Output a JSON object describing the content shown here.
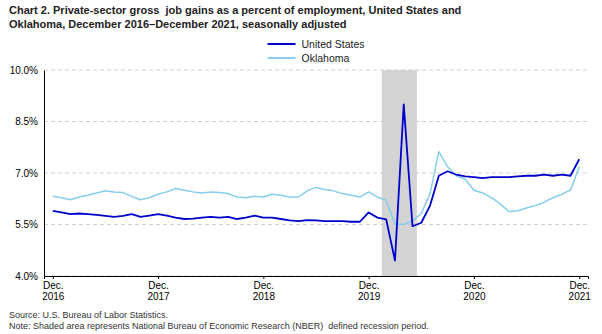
{
  "chart_data": {
    "type": "line",
    "title": "Chart 2. Private-sector gross  job gains as a percent of employment, United States and\nOklahoma, December 2016–December 2021, seasonally adjusted",
    "annotations": [
      "Source: U.S. Bureau of Labor Statistics.\nNote: Shaded area represents National Bureau of Economic Research (NBER)  defined recession period."
    ],
    "categories": [
      "Dec.\n2016",
      null,
      null,
      null,
      null,
      null,
      null,
      null,
      null,
      null,
      null,
      null,
      "Dec.\n2017",
      null,
      null,
      null,
      null,
      null,
      null,
      null,
      null,
      null,
      null,
      null,
      "Dec.\n2018",
      null,
      null,
      null,
      null,
      null,
      null,
      null,
      null,
      null,
      null,
      null,
      "Dec.\n2019",
      null,
      null,
      null,
      null,
      null,
      null,
      null,
      null,
      null,
      null,
      null,
      "Dec.\n2020",
      null,
      null,
      null,
      null,
      null,
      null,
      null,
      null,
      null,
      null,
      null,
      "Dec.\n2021"
    ],
    "series": [
      {
        "name": "United States",
        "color": "#0000CC",
        "values": [
          5.9,
          5.85,
          5.8,
          5.82,
          5.8,
          5.78,
          5.75,
          5.72,
          5.75,
          5.8,
          5.72,
          5.76,
          5.8,
          5.76,
          5.7,
          5.66,
          5.67,
          5.7,
          5.72,
          5.7,
          5.72,
          5.66,
          5.7,
          5.76,
          5.7,
          5.7,
          5.66,
          5.62,
          5.6,
          5.63,
          5.62,
          5.6,
          5.6,
          5.6,
          5.58,
          5.58,
          5.85,
          5.7,
          5.65,
          4.45,
          9.0,
          5.45,
          5.55,
          6.05,
          6.92,
          7.05,
          6.95,
          6.9,
          6.88,
          6.85,
          6.88,
          6.88,
          6.88,
          6.9,
          6.92,
          6.92,
          6.95,
          6.92,
          6.95,
          6.92,
          7.4
        ]
      },
      {
        "name": "Oklahoma",
        "color": "#87CEEB",
        "values": [
          6.32,
          6.28,
          6.22,
          6.3,
          6.35,
          6.42,
          6.48,
          6.45,
          6.43,
          6.32,
          6.22,
          6.28,
          6.38,
          6.45,
          6.55,
          6.5,
          6.45,
          6.42,
          6.45,
          6.43,
          6.4,
          6.3,
          6.28,
          6.32,
          6.3,
          6.38,
          6.35,
          6.3,
          6.3,
          6.48,
          6.58,
          6.52,
          6.48,
          6.4,
          6.35,
          6.3,
          6.45,
          6.3,
          6.2,
          5.52,
          5.5,
          5.6,
          5.82,
          6.4,
          7.62,
          7.18,
          6.92,
          6.82,
          6.5,
          6.42,
          6.28,
          6.1,
          5.88,
          5.9,
          5.98,
          6.05,
          6.15,
          6.28,
          6.38,
          6.5,
          7.18
        ]
      }
    ],
    "shaded_span": {
      "start": 37.5,
      "end": 41.5,
      "color": "#CCCCCC"
    },
    "ylim": [
      4.0,
      10.0
    ],
    "yticks": [
      {
        "value": 4.0,
        "label": "4.0%"
      },
      {
        "value": 5.5,
        "label": "5.5%"
      },
      {
        "value": 7.0,
        "label": "7.0%"
      },
      {
        "value": 8.5,
        "label": "8.5%"
      },
      {
        "value": 10.0,
        "label": "10.0%"
      }
    ],
    "grid": true,
    "legend": "top"
  }
}
